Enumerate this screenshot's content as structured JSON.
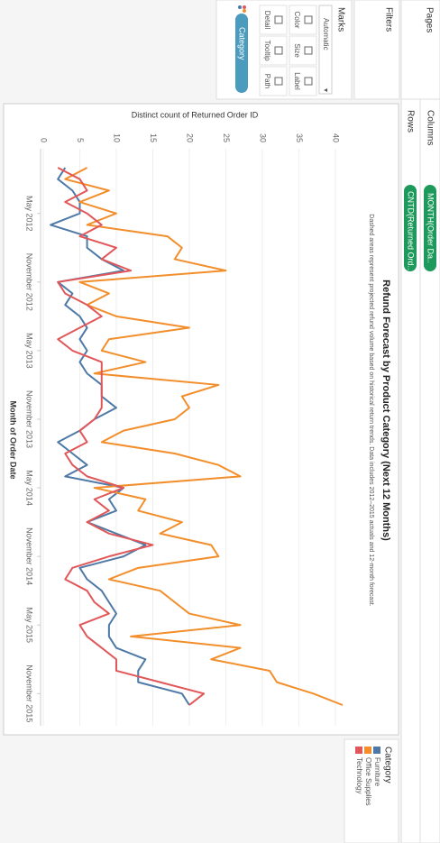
{
  "ui": {
    "pages": "Pages",
    "filters": "Filters",
    "marks": "Marks",
    "mark_type": "Automatic",
    "buttons": [
      "Color",
      "Size",
      "Label",
      "Detail",
      "Tooltip",
      "Path"
    ],
    "marks_pill": "Category",
    "columns_label": "Columns",
    "rows_label": "Rows",
    "columns_pill": "MONTH(Order Da..",
    "rows_pill": "CNTD(Returned Ord.."
  },
  "chart_data": {
    "type": "line",
    "title": "Refund Forecast by Product Category (Next 12 Months)",
    "subtitle": "Dashed areas represent projected refund volume based on historical return trends. Data includes 2012–2015 actuals and 12-month forecast.",
    "x_label": "Month of Order Date",
    "y_label": "Distinct count of Returned Order ID",
    "legend_title": "Category",
    "legend": "right",
    "x": [
      "2012-01",
      "2012-02",
      "2012-03",
      "2012-04",
      "2012-05",
      "2012-06",
      "2012-07",
      "2012-08",
      "2012-09",
      "2012-10",
      "2012-11",
      "2012-12",
      "2013-01",
      "2013-02",
      "2013-03",
      "2013-04",
      "2013-05",
      "2013-06",
      "2013-07",
      "2013-08",
      "2013-09",
      "2013-10",
      "2013-11",
      "2013-12",
      "2014-01",
      "2014-02",
      "2014-03",
      "2014-04",
      "2014-05",
      "2014-06",
      "2014-07",
      "2014-08",
      "2014-09",
      "2014-10",
      "2014-11",
      "2014-12",
      "2015-01",
      "2015-02",
      "2015-03",
      "2015-04",
      "2015-05",
      "2015-06",
      "2015-07",
      "2015-08",
      "2015-09",
      "2015-10",
      "2015-11",
      "2015-12"
    ],
    "xticks": [
      {
        "value": "2012-05",
        "label": "May 2012"
      },
      {
        "value": "2012-11",
        "label": "November 2012"
      },
      {
        "value": "2013-05",
        "label": "May 2013"
      },
      {
        "value": "2013-11",
        "label": "November 2013"
      },
      {
        "value": "2014-05",
        "label": "May 2014"
      },
      {
        "value": "2014-11",
        "label": "November 2014"
      },
      {
        "value": "2015-05",
        "label": "May 2015"
      },
      {
        "value": "2015-11",
        "label": "November 2015"
      }
    ],
    "ylim": [
      0,
      41.5
    ],
    "yticks": [
      0,
      5,
      10,
      15,
      20,
      25,
      30,
      35,
      40
    ],
    "grid": true,
    "series": [
      {
        "name": "Furniture",
        "color": "#4e79a7",
        "values": [
          3,
          2,
          4,
          5,
          5,
          1,
          6,
          6,
          8,
          11,
          2,
          4,
          3,
          5,
          6,
          5,
          6,
          5,
          6,
          8,
          8,
          10,
          7,
          5,
          2,
          4,
          6,
          3,
          11,
          9,
          10,
          6,
          10,
          14,
          11,
          5,
          6,
          8,
          9,
          10,
          9,
          9,
          10,
          14,
          13,
          13,
          19,
          20
        ]
      },
      {
        "name": "Office Supplies",
        "color": "#f28e2b",
        "values": [
          6,
          3,
          9,
          5,
          10,
          6,
          17,
          19,
          18,
          25,
          5,
          9,
          6,
          10,
          20,
          9,
          8,
          14,
          7,
          24,
          19,
          20,
          18,
          11,
          8,
          18,
          24,
          27,
          7,
          14,
          13,
          19,
          16,
          23,
          24,
          13,
          9,
          16,
          18,
          20,
          27,
          12,
          27,
          23,
          31,
          32,
          37,
          41
        ]
      },
      {
        "name": "Technology",
        "color": "#e15759",
        "values": [
          2,
          5,
          6,
          3,
          6,
          8,
          5,
          10,
          8,
          12,
          2,
          3,
          6,
          8,
          5,
          2,
          4,
          8,
          8,
          8,
          8,
          8,
          7,
          5,
          6,
          3,
          4,
          6,
          11,
          7,
          9,
          6,
          9,
          15,
          9,
          4,
          3,
          6,
          7,
          9,
          5,
          6,
          8,
          10,
          10,
          16,
          22,
          20
        ]
      }
    ]
  }
}
